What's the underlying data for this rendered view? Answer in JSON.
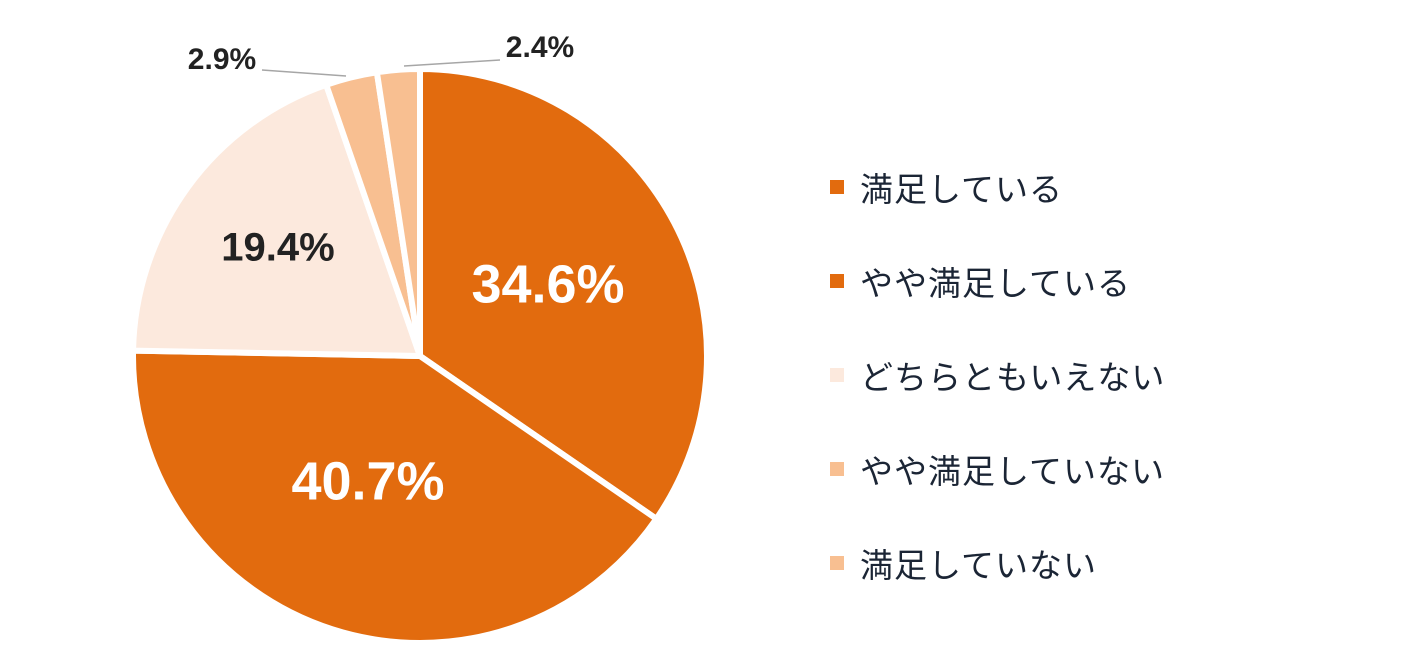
{
  "chart_data": {
    "type": "pie",
    "title": "",
    "slices": [
      {
        "label": "満足している",
        "value": 34.6,
        "display": "34.6%",
        "color": "#e26b0e"
      },
      {
        "label": "やや満足している",
        "value": 40.7,
        "display": "40.7%",
        "color": "#e26b0e"
      },
      {
        "label": "どちらともいえない",
        "value": 19.4,
        "display": "19.4%",
        "color": "#fce9dd"
      },
      {
        "label": "やや満足していない",
        "value": 2.9,
        "display": "2.9%",
        "color": "#f8bf91"
      },
      {
        "label": "満足していない",
        "value": 2.4,
        "display": "2.4%",
        "color": "#f8bf91"
      }
    ],
    "legend_position": "right"
  }
}
